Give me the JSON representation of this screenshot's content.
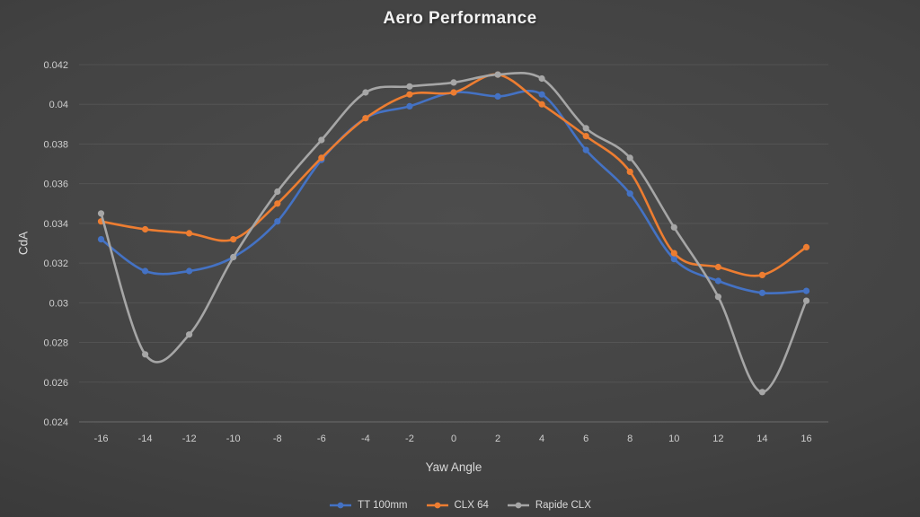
{
  "chart_data": {
    "type": "line",
    "title": "Aero Performance",
    "xlabel": "Yaw Angle",
    "ylabel": "CdA",
    "x": [
      -16,
      -14,
      -12,
      -10,
      -8,
      -6,
      -4,
      -2,
      0,
      2,
      4,
      6,
      8,
      10,
      12,
      14,
      16
    ],
    "series": [
      {
        "name": "TT 100mm",
        "color": "#4472C4",
        "values": [
          0.0332,
          0.0316,
          0.0316,
          0.0323,
          0.0341,
          0.0372,
          0.0393,
          0.0399,
          0.0406,
          0.0404,
          0.0405,
          0.0377,
          0.0355,
          0.0322,
          0.0311,
          0.0305,
          0.0306
        ]
      },
      {
        "name": "CLX 64",
        "color": "#ED7D31",
        "values": [
          0.0341,
          0.0337,
          0.0335,
          0.0332,
          0.035,
          0.0373,
          0.0393,
          0.0405,
          0.0406,
          0.0415,
          0.04,
          0.0384,
          0.0366,
          0.0325,
          0.0318,
          0.0314,
          0.0328
        ]
      },
      {
        "name": "Rapide CLX",
        "color": "#A6A6A6",
        "values": [
          0.0345,
          0.0274,
          0.0284,
          0.0323,
          0.0356,
          0.0382,
          0.0406,
          0.0409,
          0.0411,
          0.0415,
          0.0413,
          0.0388,
          0.0373,
          0.0338,
          0.0303,
          0.0255,
          0.0301
        ]
      }
    ],
    "ylim": [
      0.024,
      0.042
    ],
    "yticks": [
      "0.024",
      "0.026",
      "0.028",
      "0.03",
      "0.032",
      "0.034",
      "0.036",
      "0.038",
      "0.04",
      "0.042"
    ],
    "grid": true,
    "smooth": true,
    "legend_position": "bottom"
  },
  "style_colors": {
    "title_text": "#F2F2F2",
    "axis_text": "#CFCFCF",
    "gridline": "rgba(255,255,255,0.08)"
  }
}
